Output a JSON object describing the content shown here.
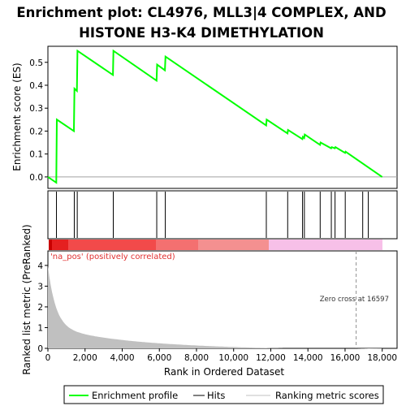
{
  "chart_data": {
    "type": "line",
    "title_lines": [
      "Enrichment plot: CL4976, MLL3|4 COMPLEX, AND",
      "HISTONE H3-K4 DIMETHYLATION"
    ],
    "xlabel": "Rank in Ordered Dataset",
    "es_panel": {
      "ylabel": "Enrichment score (ES)",
      "ylim": [
        -0.05,
        0.57
      ],
      "yticks": [
        0.0,
        0.1,
        0.2,
        0.3,
        0.4,
        0.5
      ],
      "ytick_labels": [
        "0.0",
        "0.1",
        "0.2",
        "0.3",
        "0.4",
        "0.5"
      ],
      "series": [
        {
          "name": "Enrichment profile",
          "color": "#00ff00",
          "x": [
            0,
            450,
            480,
            1400,
            1430,
            1560,
            1590,
            3500,
            3530,
            5850,
            5880,
            6300,
            6330,
            11750,
            11780,
            12900,
            12930,
            13700,
            13730,
            13800,
            13830,
            14650,
            14680,
            15250,
            15280,
            15450,
            15480,
            16000,
            16030,
            18000
          ],
          "y": [
            0.0,
            -0.025,
            0.25,
            0.2,
            0.385,
            0.375,
            0.55,
            0.445,
            0.55,
            0.42,
            0.49,
            0.465,
            0.525,
            0.225,
            0.25,
            0.19,
            0.205,
            0.165,
            0.175,
            0.17,
            0.185,
            0.14,
            0.15,
            0.125,
            0.13,
            0.125,
            0.13,
            0.105,
            0.11,
            0.0
          ]
        }
      ]
    },
    "hits": {
      "name": "Hits",
      "x": [
        460,
        1420,
        1580,
        3520,
        5860,
        6320,
        11760,
        12910,
        13710,
        13810,
        14660,
        15260,
        15460,
        16010,
        16950,
        17250
      ]
    },
    "rank_bar_label": "'na_pos' (positively correlated)",
    "metric_panel": {
      "ylabel": "Ranked list metric (PreRanked)",
      "ylim": [
        0,
        4.7
      ],
      "yticks": [
        0,
        1,
        2,
        3,
        4
      ],
      "ytick_labels": [
        "0",
        "1",
        "2",
        "3",
        "4"
      ],
      "series_name": "Ranking metric scores",
      "zero_cross_label": "Zero cross at 16597",
      "zero_cross": 16597
    },
    "xlim": [
      0,
      18800
    ],
    "xticks": [
      0,
      2000,
      4000,
      6000,
      8000,
      10000,
      12000,
      14000,
      16000,
      18000
    ],
    "xtick_labels": [
      "0",
      "2,000",
      "4,000",
      "6,000",
      "8,000",
      "10,000",
      "12,000",
      "14,000",
      "16,000",
      "18,000"
    ],
    "legend": [
      "Enrichment profile",
      "Hits",
      "Ranking metric scores"
    ],
    "colors": {
      "profile": "#00ff00",
      "hit": "#000000",
      "metric": "#c0c0c0"
    }
  }
}
